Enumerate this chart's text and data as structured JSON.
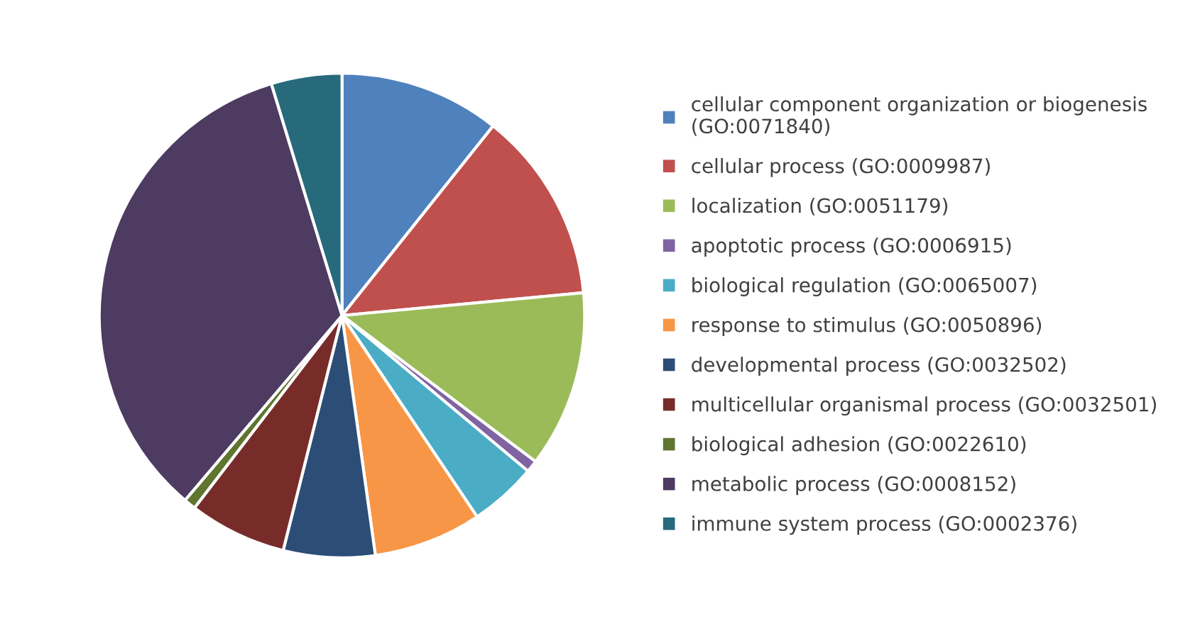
{
  "chart_data": {
    "type": "pie",
    "categories": [
      "cellular component organization or biogenesis\n(GO:0071840)",
      "cellular process (GO:0009987)",
      "localization (GO:0051179)",
      "apoptotic process (GO:0006915)",
      "biological regulation (GO:0065007)",
      "response to stimulus (GO:0050896)",
      "developmental process (GO:0032502)",
      "multicellular organismal process (GO:0032501)",
      "biological adhesion (GO:0022610)",
      "metabolic process (GO:0008152)",
      "immune system process (GO:0002376)"
    ],
    "values": [
      10.7,
      12.8,
      11.8,
      0.8,
      4.5,
      7.2,
      6.1,
      6.5,
      0.8,
      34.1,
      4.7
    ],
    "colors": [
      "#4f81bd",
      "#c0504d",
      "#9bbb59",
      "#8064a2",
      "#4bacc6",
      "#f79646",
      "#2c4d75",
      "#772c2a",
      "#5f7530",
      "#4d3b62",
      "#276a7c"
    ],
    "legend": "right"
  }
}
